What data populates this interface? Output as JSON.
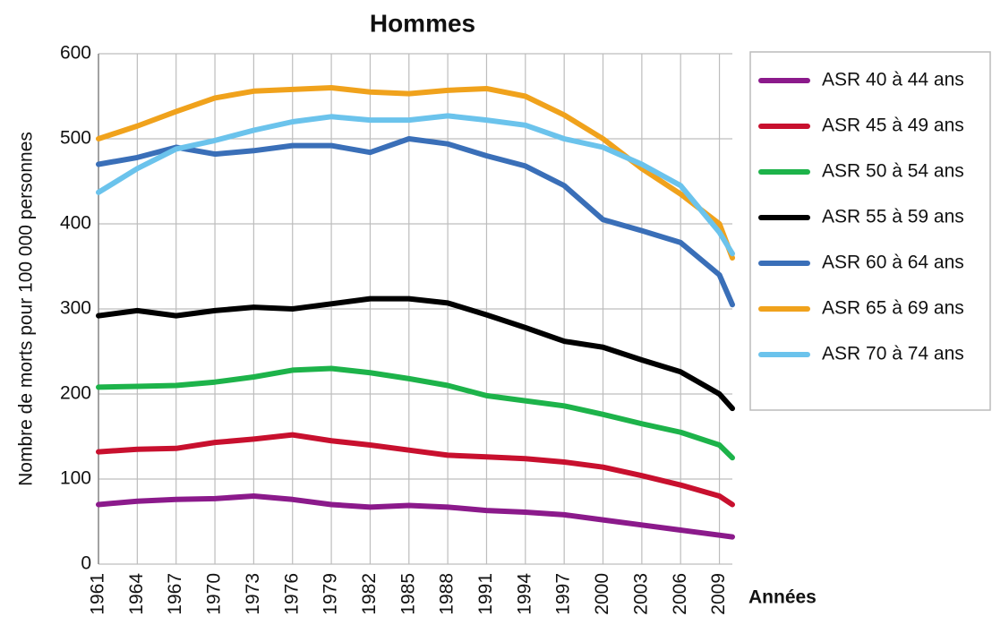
{
  "chart_data": {
    "type": "line",
    "title": "Hommes",
    "y_label": "Nombre de morts pour 100 000 personnes",
    "x_label": "Années",
    "x": [
      1961,
      1964,
      1967,
      1970,
      1973,
      1976,
      1979,
      1982,
      1985,
      1988,
      1991,
      1994,
      1997,
      2000,
      2003,
      2006,
      2009,
      2010
    ],
    "xlim": [
      1961,
      2010
    ],
    "xticks": [
      1961,
      1964,
      1967,
      1970,
      1973,
      1976,
      1979,
      1982,
      1985,
      1988,
      1991,
      1994,
      1997,
      2000,
      2003,
      2006,
      2009
    ],
    "ylim": [
      0,
      600
    ],
    "yticks": [
      0,
      100,
      200,
      300,
      400,
      500,
      600
    ],
    "grid": true,
    "legend": "right",
    "series": [
      {
        "name": "ASR 40 à 44 ans",
        "color": "#8b1a8b",
        "values": [
          70,
          74,
          76,
          77,
          80,
          76,
          70,
          67,
          69,
          67,
          63,
          61,
          58,
          52,
          46,
          40,
          34,
          32
        ]
      },
      {
        "name": "ASR 45 à 49 ans",
        "color": "#c8102e",
        "values": [
          132,
          135,
          136,
          143,
          147,
          152,
          145,
          140,
          134,
          128,
          126,
          124,
          120,
          114,
          104,
          93,
          80,
          70
        ]
      },
      {
        "name": "ASR 50 à 54 ans",
        "color": "#1db34a",
        "values": [
          208,
          209,
          210,
          214,
          220,
          228,
          230,
          225,
          218,
          210,
          198,
          192,
          186,
          176,
          165,
          155,
          140,
          125
        ]
      },
      {
        "name": "ASR 55 à 59 ans",
        "color": "#000000",
        "values": [
          292,
          298,
          292,
          298,
          302,
          300,
          306,
          312,
          312,
          307,
          293,
          278,
          262,
          255,
          240,
          226,
          200,
          183
        ]
      },
      {
        "name": "ASR 60 à 64 ans",
        "color": "#3a6fb8",
        "values": [
          470,
          478,
          490,
          482,
          486,
          492,
          492,
          484,
          500,
          494,
          480,
          468,
          445,
          405,
          392,
          378,
          340,
          305
        ]
      },
      {
        "name": "ASR 65 à 69 ans",
        "color": "#f0a21c",
        "values": [
          500,
          515,
          532,
          548,
          556,
          558,
          560,
          555,
          553,
          557,
          559,
          550,
          528,
          500,
          465,
          435,
          400,
          360
        ]
      },
      {
        "name": "ASR 70 à 74 ans",
        "color": "#6bc3ec",
        "values": [
          437,
          465,
          488,
          498,
          510,
          520,
          526,
          522,
          522,
          527,
          522,
          516,
          500,
          490,
          470,
          445,
          390,
          365
        ]
      }
    ]
  }
}
